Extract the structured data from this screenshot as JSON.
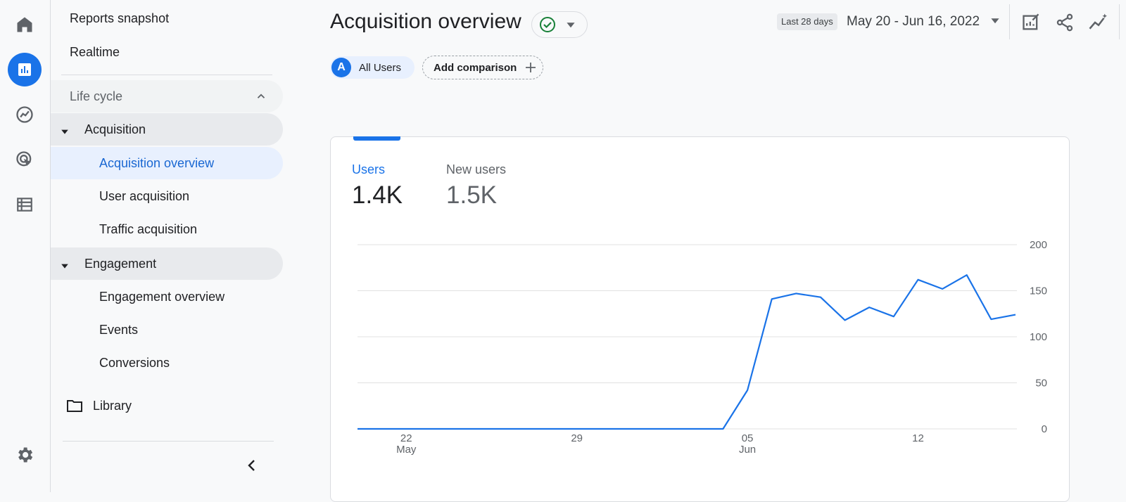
{
  "rail": {
    "items": [
      {
        "icon": "home-icon"
      },
      {
        "icon": "reports-icon",
        "active": true
      },
      {
        "icon": "explore-icon"
      },
      {
        "icon": "advertising-icon"
      },
      {
        "icon": "configure-icon"
      }
    ],
    "settings_icon": "gear-icon"
  },
  "nav": {
    "reports_snapshot": "Reports snapshot",
    "realtime": "Realtime",
    "lifecycle": "Life cycle",
    "acquisition": "Acquisition",
    "acquisition_overview": "Acquisition overview",
    "user_acquisition": "User acquisition",
    "traffic_acquisition": "Traffic acquisition",
    "engagement": "Engagement",
    "engagement_overview": "Engagement overview",
    "events": "Events",
    "conversions": "Conversions",
    "library": "Library"
  },
  "header": {
    "title": "Acquisition overview",
    "date_badge": "Last 28 days",
    "date_range": "May 20 - Jun 16, 2022"
  },
  "chips": {
    "segment_initial": "A",
    "segment": "All Users",
    "add_comparison": "Add comparison"
  },
  "metrics": {
    "users_label": "Users",
    "users_value": "1.4K",
    "new_users_label": "New users",
    "new_users_value": "1.5K"
  },
  "colors": {
    "accent": "#1a73e8",
    "check": "#188038"
  },
  "chart_data": {
    "type": "line",
    "y_ticks": [
      "200",
      "150",
      "100",
      "50",
      "0"
    ],
    "ylim": [
      0,
      200
    ],
    "x_ticks": [
      {
        "day": "22",
        "month": "May",
        "index": 2
      },
      {
        "day": "29",
        "month": "",
        "index": 9
      },
      {
        "day": "05",
        "month": "Jun",
        "index": 16
      },
      {
        "day": "12",
        "month": "",
        "index": 23
      }
    ],
    "series": [
      {
        "values": [
          0,
          0,
          0,
          0,
          0,
          0,
          0,
          0,
          0,
          0,
          0,
          0,
          0,
          0,
          0,
          0,
          42,
          141,
          147,
          143,
          118,
          132,
          122,
          162,
          152,
          167,
          119,
          124
        ]
      }
    ]
  }
}
